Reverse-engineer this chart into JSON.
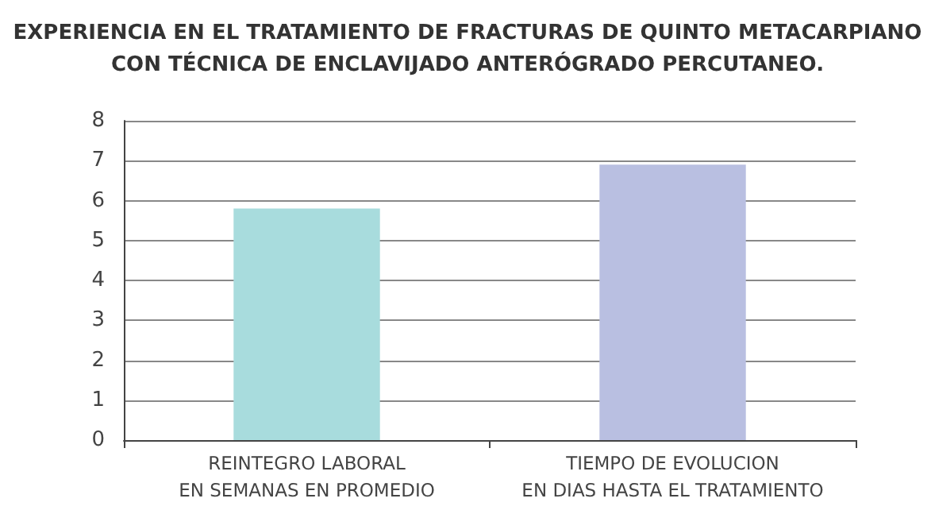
{
  "chart_data": {
    "type": "bar",
    "title": "EXPERIENCIA EN EL TRATAMIENTO DE FRACTURAS DE QUINTO METACARPIANO\nCON TÉCNICA DE ENCLAVIJADO ANTERÓGRADO PERCUTANEO.",
    "categories": [
      "REINTEGRO LABORAL\nEN SEMANAS EN PROMEDIO",
      "TIEMPO DE EVOLUCION\nEN DIAS HASTA EL TRATAMIENTO"
    ],
    "values": [
      5.8,
      6.9
    ],
    "colors": [
      "#a8dcdd",
      "#b9bfe1"
    ],
    "ylim": [
      0,
      8
    ],
    "yticks": [
      0,
      1,
      2,
      3,
      4,
      5,
      6,
      7,
      8
    ],
    "grid": "y"
  }
}
